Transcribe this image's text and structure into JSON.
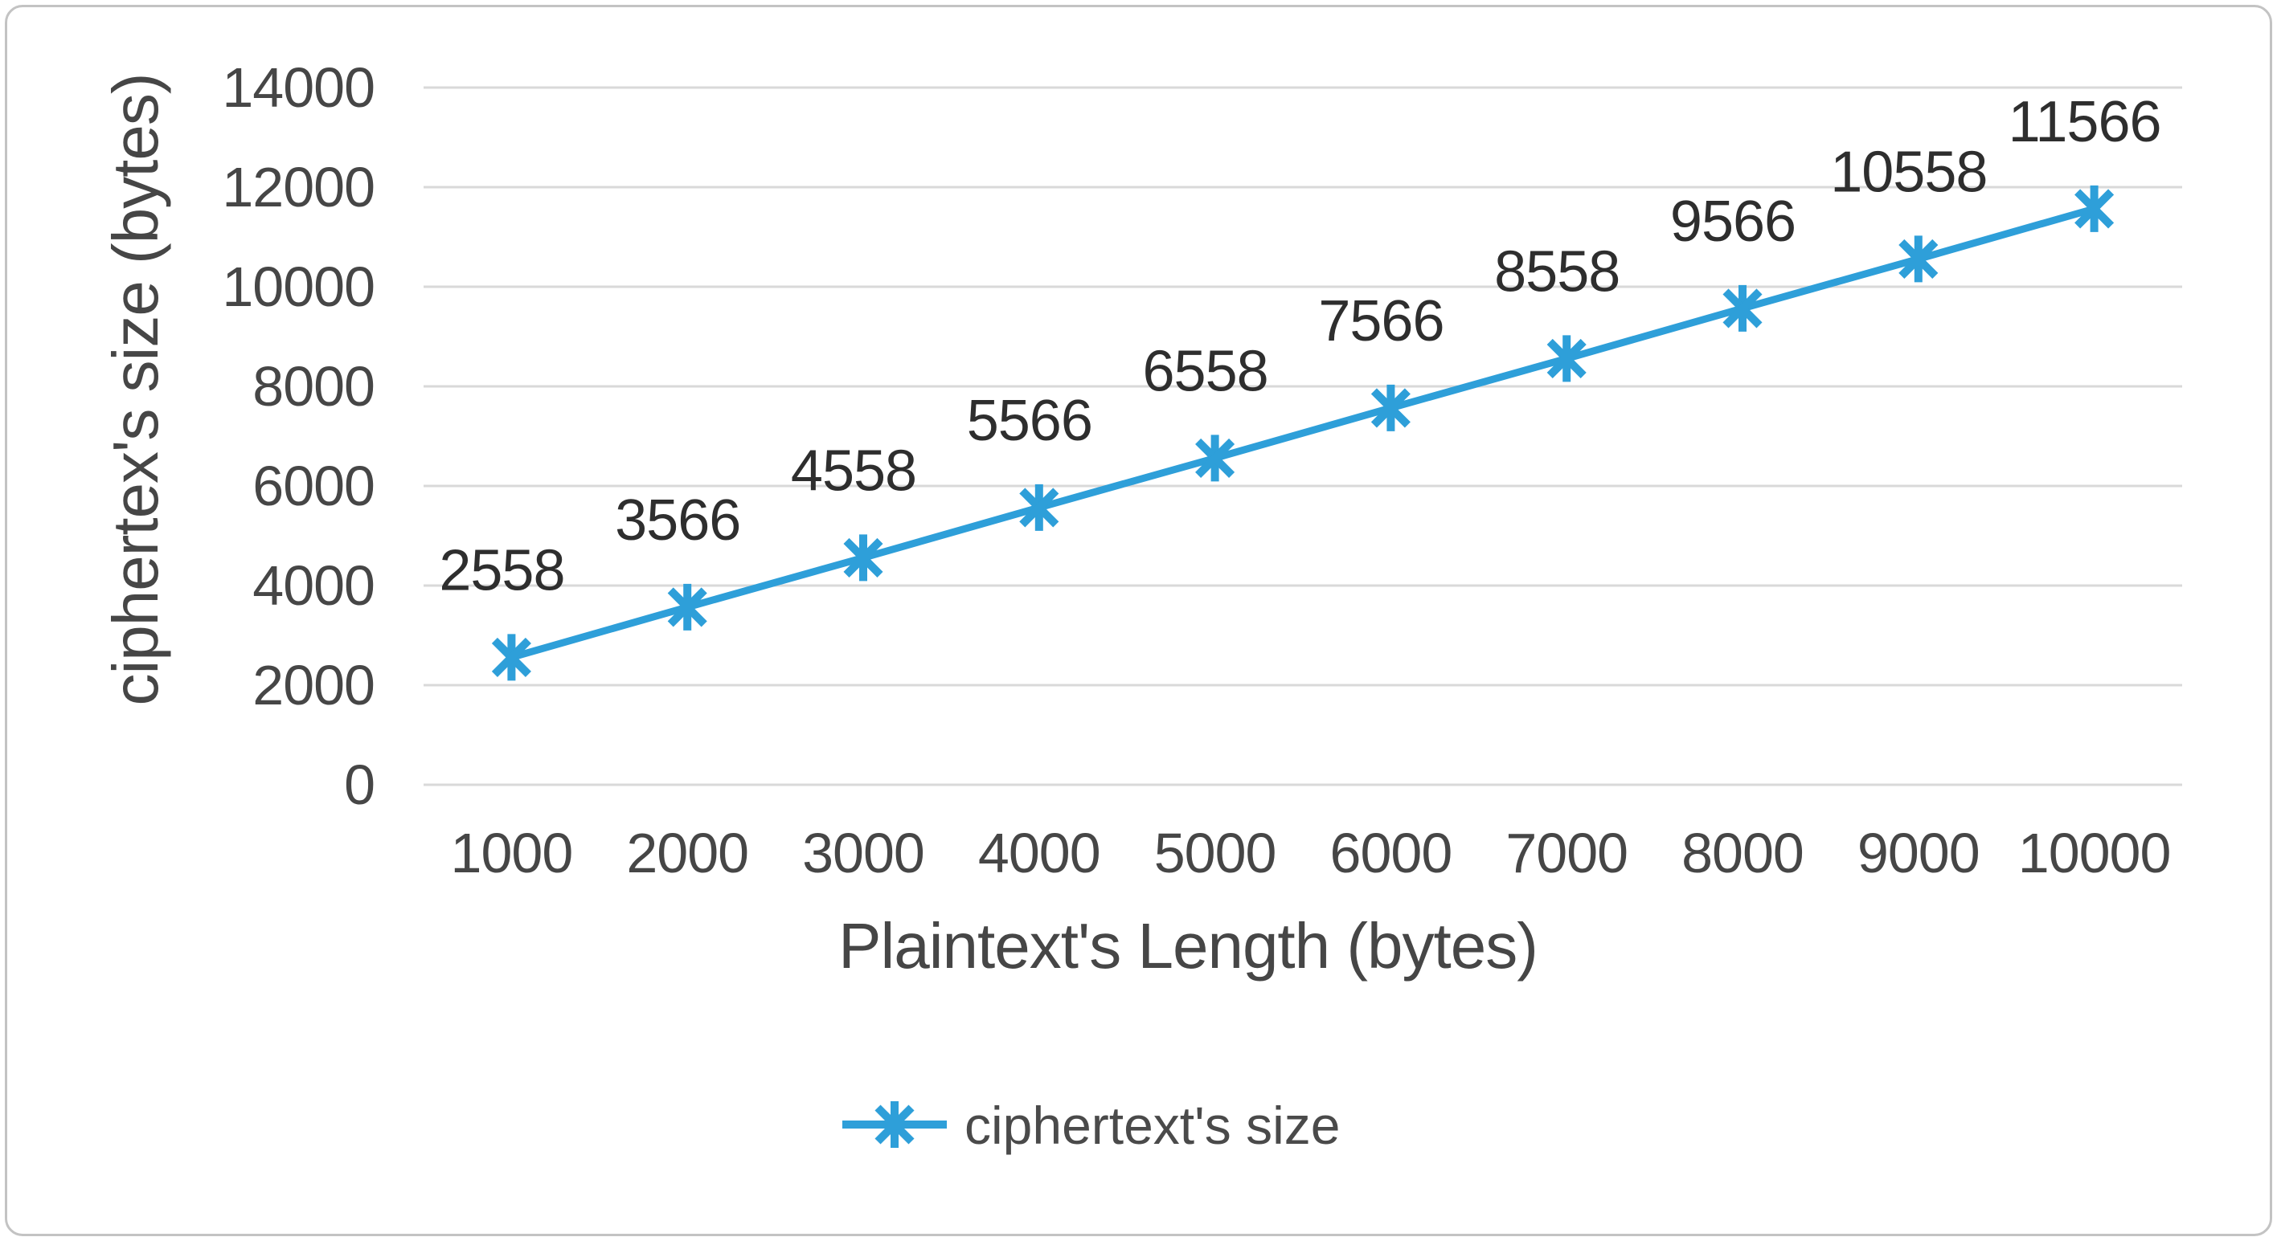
{
  "figure": {
    "background": "#ffffff",
    "border_color": "#c3c3c3"
  },
  "chart_data": {
    "type": "line",
    "title": "",
    "xlabel": "Plaintext's Length (bytes)",
    "ylabel": "ciphertex's size (bytes)",
    "categories": [
      1000,
      2000,
      3000,
      4000,
      5000,
      6000,
      7000,
      8000,
      9000,
      10000
    ],
    "series": [
      {
        "name": "ciphertext's size",
        "values": [
          2558,
          3566,
          4558,
          5566,
          6558,
          7566,
          8558,
          9566,
          10558,
          11566
        ],
        "color": "#2e9fd9",
        "marker": "asterisk-star",
        "data_labels": [
          "2558",
          "3566",
          "4558",
          "5566",
          "6558",
          "7566",
          "8558",
          "9566",
          "10558",
          "11566"
        ]
      }
    ],
    "y_ticks": [
      0,
      2000,
      4000,
      6000,
      8000,
      10000,
      12000,
      14000
    ],
    "ylim": [
      0,
      14000
    ],
    "grid": "horizontal",
    "gridline_color": "#d9d9d9",
    "tick_color": "#464646",
    "axis_title_color": "#464646",
    "data_label_color": "#2e2e2e",
    "legend": {
      "position": "bottom",
      "entries": [
        {
          "label": "ciphertext's size",
          "color": "#2e9fd9"
        }
      ]
    }
  }
}
